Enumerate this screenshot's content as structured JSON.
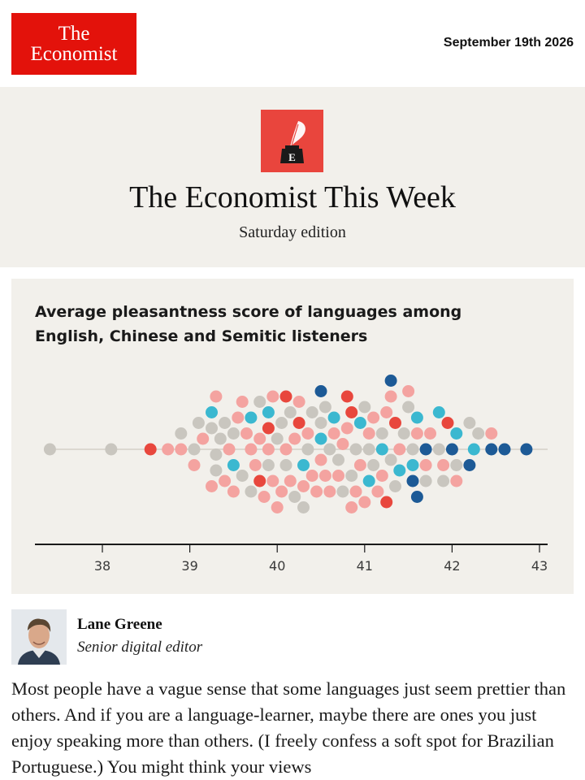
{
  "header": {
    "logo_line1": "The",
    "logo_line2": "Economist",
    "date": "September 19th 2026"
  },
  "masthead": {
    "icon": "inkwell-quill-icon",
    "title": "The Economist This Week",
    "subtitle": "Saturday edition"
  },
  "chart_data": {
    "type": "scatter",
    "subtype": "beeswarm",
    "title": "Average pleasantness score of languages among English, Chinese and Semitic listeners",
    "xlabel": "",
    "ylabel": "",
    "xlim": [
      37.5,
      43
    ],
    "xticks": [
      38,
      39,
      40,
      41,
      42,
      43
    ],
    "grid": false,
    "colors": {
      "grey": "#c9c6bf",
      "pink": "#f4a3a0",
      "red": "#e8473d",
      "cyan": "#3bb8d0",
      "navy": "#1d5a96"
    },
    "series": [
      {
        "values": [
          37.4,
          38.1,
          38.9,
          39.05,
          39.1,
          39.25,
          39.3,
          39.3,
          39.35,
          39.4,
          39.5,
          39.6,
          39.7,
          39.8,
          39.9,
          40.0,
          40.05,
          40.1,
          40.15,
          40.2,
          40.3,
          40.35,
          40.4,
          40.5,
          40.55,
          40.6,
          40.7,
          40.75,
          40.85,
          40.9,
          41.0,
          41.05,
          41.1,
          41.2,
          41.3,
          41.35,
          41.45,
          41.5,
          41.55,
          41.7,
          41.85,
          41.9,
          42.05,
          42.2,
          42.3
        ]
      },
      {
        "values": [
          38.75,
          38.9,
          39.05,
          39.15,
          39.25,
          39.3,
          39.4,
          39.45,
          39.5,
          39.55,
          39.6,
          39.65,
          39.7,
          39.75,
          39.8,
          39.85,
          39.9,
          39.95,
          39.95,
          40.0,
          40.05,
          40.1,
          40.15,
          40.2,
          40.25,
          40.3,
          40.35,
          40.4,
          40.45,
          40.5,
          40.55,
          40.6,
          40.65,
          40.7,
          40.75,
          40.8,
          40.85,
          40.9,
          40.95,
          41.0,
          41.05,
          41.1,
          41.15,
          41.2,
          41.25,
          41.3,
          41.4,
          41.5,
          41.6,
          41.7,
          41.75,
          41.9,
          42.05,
          42.45
        ]
      },
      {
        "values": [
          38.55,
          39.8,
          39.9,
          40.1,
          40.25,
          40.8,
          40.85,
          41.25,
          41.35,
          41.95
        ]
      },
      {
        "values": [
          39.25,
          39.5,
          39.7,
          39.9,
          40.3,
          40.5,
          40.65,
          40.95,
          41.05,
          41.2,
          41.4,
          41.55,
          41.6,
          41.85,
          42.05,
          42.25
        ]
      },
      {
        "values": [
          40.5,
          41.3,
          41.55,
          41.6,
          41.7,
          42.0,
          42.2,
          42.45,
          42.6,
          42.85
        ]
      }
    ]
  },
  "author": {
    "name": "Lane Greene",
    "role": "Senior digital editor"
  },
  "article": {
    "lead": "Most people have a vague sense that some languages just seem prettier than others. And if you are a language-learner, maybe there are ones you just enjoy speaking more than others. (I freely confess a soft spot for Brazilian Portuguese.) You might think your views"
  }
}
